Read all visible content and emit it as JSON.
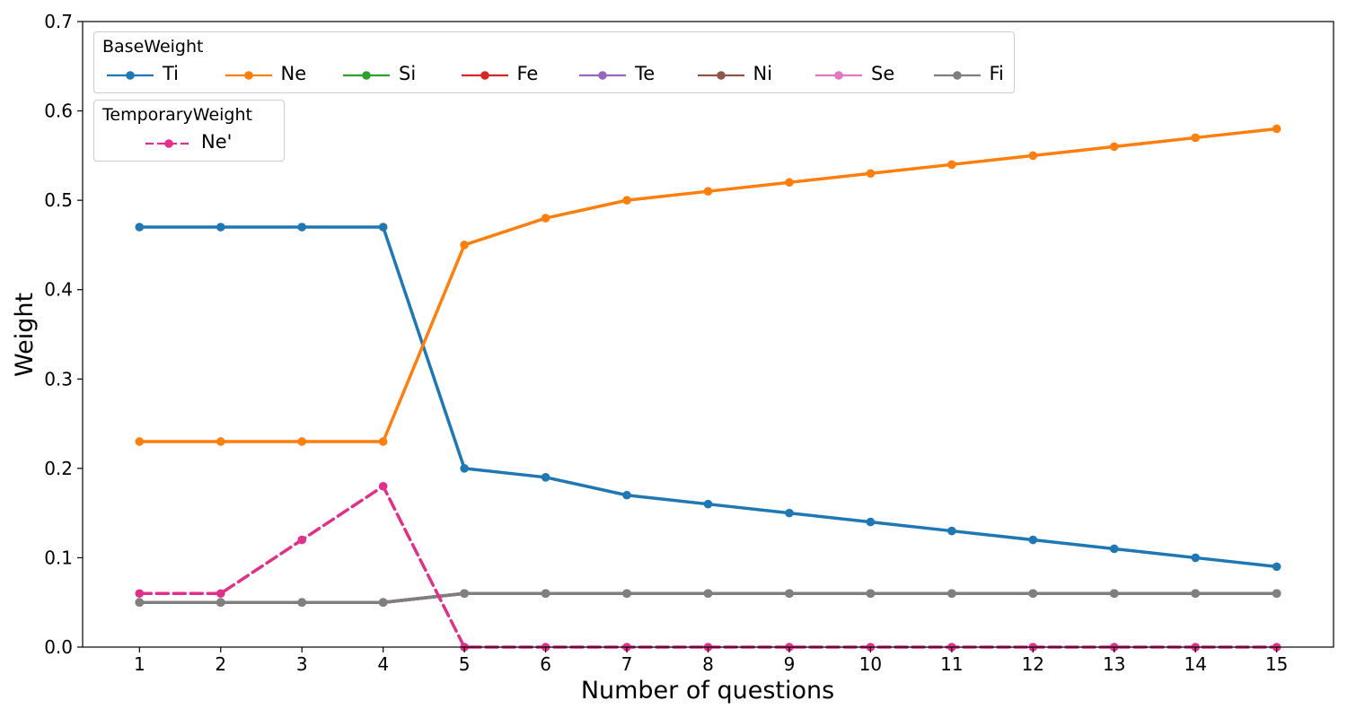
{
  "chart_data": {
    "type": "line",
    "title": "",
    "xlabel": "Number of questions",
    "ylabel": "Weight",
    "xlim": [
      0.3,
      15.7
    ],
    "ylim": [
      0,
      0.7
    ],
    "x": [
      1,
      2,
      3,
      4,
      5,
      6,
      7,
      8,
      9,
      10,
      11,
      12,
      13,
      14,
      15
    ],
    "x_ticks": [
      "1",
      "2",
      "3",
      "4",
      "5",
      "6",
      "7",
      "8",
      "9",
      "10",
      "11",
      "12",
      "13",
      "14",
      "15"
    ],
    "y_ticks": [
      "0.0",
      "0.1",
      "0.2",
      "0.3",
      "0.4",
      "0.5",
      "0.6",
      "0.7"
    ],
    "grid": false,
    "legends": [
      {
        "title": "BaseWeight",
        "placement": "top-left",
        "entries": [
          "Ti",
          "Ne",
          "Si",
          "Fe",
          "Te",
          "Ni",
          "Se",
          "Fi"
        ]
      },
      {
        "title": "TemporaryWeight",
        "placement": "top-left",
        "entries": [
          "Ne'"
        ]
      }
    ],
    "series": [
      {
        "name": "Ti",
        "color": "#1f77b4",
        "dash": "solid",
        "values": [
          0.47,
          0.47,
          0.47,
          0.47,
          0.2,
          0.19,
          0.17,
          0.16,
          0.15,
          0.14,
          0.13,
          0.12,
          0.11,
          0.1,
          0.09
        ]
      },
      {
        "name": "Ne",
        "color": "#ff7f0e",
        "dash": "solid",
        "values": [
          0.23,
          0.23,
          0.23,
          0.23,
          0.45,
          0.48,
          0.5,
          0.51,
          0.52,
          0.53,
          0.54,
          0.55,
          0.56,
          0.57,
          0.58
        ]
      },
      {
        "name": "Si",
        "color": "#2ca02c",
        "dash": "solid",
        "values": [
          0.05,
          0.05,
          0.05,
          0.05,
          0.06,
          0.06,
          0.06,
          0.06,
          0.06,
          0.06,
          0.06,
          0.06,
          0.06,
          0.06,
          0.06
        ]
      },
      {
        "name": "Fe",
        "color": "#d62728",
        "dash": "solid",
        "values": [
          0.05,
          0.05,
          0.05,
          0.05,
          0.06,
          0.06,
          0.06,
          0.06,
          0.06,
          0.06,
          0.06,
          0.06,
          0.06,
          0.06,
          0.06
        ]
      },
      {
        "name": "Te",
        "color": "#9467bd",
        "dash": "solid",
        "values": [
          0.05,
          0.05,
          0.05,
          0.05,
          0.06,
          0.06,
          0.06,
          0.06,
          0.06,
          0.06,
          0.06,
          0.06,
          0.06,
          0.06,
          0.06
        ]
      },
      {
        "name": "Ni",
        "color": "#8c564b",
        "dash": "solid",
        "values": [
          0.05,
          0.05,
          0.05,
          0.05,
          0.06,
          0.06,
          0.06,
          0.06,
          0.06,
          0.06,
          0.06,
          0.06,
          0.06,
          0.06,
          0.06
        ]
      },
      {
        "name": "Se",
        "color": "#e377c2",
        "dash": "solid",
        "values": [
          0.05,
          0.05,
          0.05,
          0.05,
          0.06,
          0.06,
          0.06,
          0.06,
          0.06,
          0.06,
          0.06,
          0.06,
          0.06,
          0.06,
          0.06
        ]
      },
      {
        "name": "Fi",
        "color": "#7f7f7f",
        "dash": "solid",
        "values": [
          0.05,
          0.05,
          0.05,
          0.05,
          0.06,
          0.06,
          0.06,
          0.06,
          0.06,
          0.06,
          0.06,
          0.06,
          0.06,
          0.06,
          0.06
        ]
      },
      {
        "name": "Ne'",
        "color": "#e0308a",
        "dash": "dashed",
        "values": [
          0.06,
          0.06,
          0.12,
          0.18,
          0.0,
          0.0,
          0.0,
          0.0,
          0.0,
          0.0,
          0.0,
          0.0,
          0.0,
          0.0,
          0.0
        ]
      }
    ]
  }
}
